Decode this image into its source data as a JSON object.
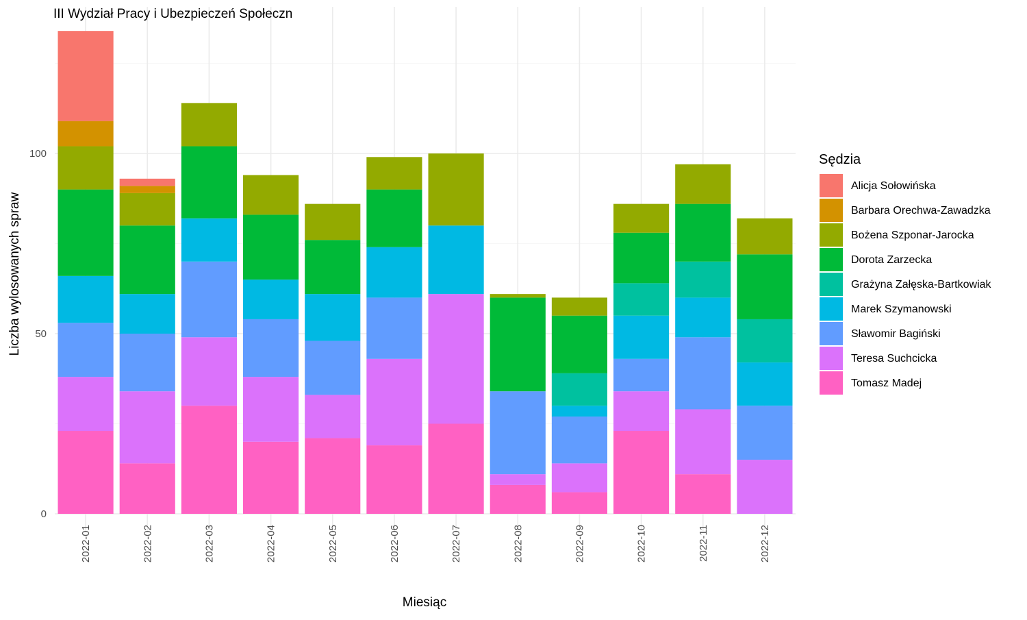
{
  "chart_data": {
    "type": "bar",
    "stacked": true,
    "title": "III Wydział Pracy i Ubezpieczeń Społeczn",
    "xlabel": "Miesiąc",
    "ylabel": "Liczba wylosowanych spraw",
    "ylim": [
      0,
      140
    ],
    "yticks": [
      0,
      50,
      100
    ],
    "grid": true,
    "legend": {
      "title": "Sędzia",
      "position": "right"
    },
    "categories": [
      "2022-01",
      "2022-02",
      "2022-03",
      "2022-04",
      "2022-05",
      "2022-06",
      "2022-07",
      "2022-08",
      "2022-09",
      "2022-10",
      "2022-11",
      "2022-12"
    ],
    "series": [
      {
        "name": "Alicja Sołowińska",
        "color": "#F8766D",
        "values": [
          25,
          2,
          0,
          0,
          0,
          0,
          0,
          0,
          0,
          0,
          0,
          0
        ]
      },
      {
        "name": "Barbara Orechwa-Zawadzka",
        "color": "#D39200",
        "values": [
          7,
          2,
          0,
          0,
          0,
          0,
          0,
          0,
          0,
          0,
          0,
          0
        ]
      },
      {
        "name": "Bożena Szponar-Jarocka",
        "color": "#93AA00",
        "values": [
          12,
          9,
          12,
          11,
          10,
          9,
          20,
          1,
          5,
          8,
          11,
          10
        ]
      },
      {
        "name": "Dorota Zarzecka",
        "color": "#00BA38",
        "values": [
          24,
          19,
          20,
          18,
          15,
          16,
          0,
          26,
          16,
          14,
          16,
          18
        ]
      },
      {
        "name": "Grażyna Załęska-Bartkowiak",
        "color": "#00C19F",
        "values": [
          0,
          0,
          0,
          0,
          0,
          0,
          0,
          0,
          9,
          9,
          10,
          12
        ]
      },
      {
        "name": "Marek Szymanowski",
        "color": "#00B9E3",
        "values": [
          13,
          11,
          12,
          11,
          13,
          14,
          19,
          0,
          3,
          12,
          11,
          12
        ]
      },
      {
        "name": "Sławomir Bagiński",
        "color": "#619CFF",
        "values": [
          15,
          16,
          21,
          16,
          15,
          17,
          0,
          23,
          13,
          9,
          20,
          15
        ]
      },
      {
        "name": "Teresa Suchcicka",
        "color": "#DB72FB",
        "values": [
          15,
          20,
          19,
          18,
          12,
          24,
          36,
          3,
          8,
          11,
          18,
          15
        ]
      },
      {
        "name": "Tomasz Madej",
        "color": "#FF61C3",
        "values": [
          23,
          14,
          30,
          20,
          21,
          19,
          25,
          8,
          6,
          23,
          11,
          0
        ]
      }
    ]
  }
}
